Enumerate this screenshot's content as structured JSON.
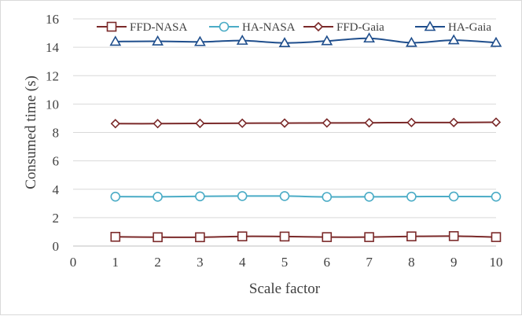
{
  "chart_data": {
    "type": "line",
    "title": "",
    "xlabel": "Scale factor",
    "ylabel": "Consumed time (s)",
    "xlim": [
      0,
      10
    ],
    "ylim": [
      0,
      16
    ],
    "x_ticks": [
      "0",
      "1",
      "2",
      "3",
      "4",
      "5",
      "6",
      "7",
      "8",
      "9",
      "10"
    ],
    "y_ticks": [
      "0",
      "2",
      "4",
      "6",
      "8",
      "10",
      "12",
      "14",
      "16"
    ],
    "grid": "horizontal",
    "legend_position": "top",
    "x": [
      1,
      2,
      3,
      4,
      5,
      6,
      7,
      8,
      9,
      10
    ],
    "series": [
      {
        "name": "FFD-NASA",
        "marker": "square",
        "color": "#7b2a2a",
        "values": [
          0.65,
          0.62,
          0.62,
          0.68,
          0.67,
          0.63,
          0.63,
          0.68,
          0.7,
          0.63
        ]
      },
      {
        "name": "HA-NASA",
        "marker": "circle",
        "color": "#4bacc6",
        "values": [
          3.48,
          3.47,
          3.5,
          3.52,
          3.52,
          3.46,
          3.47,
          3.48,
          3.49,
          3.48
        ]
      },
      {
        "name": "FFD-Gaia",
        "marker": "diamond",
        "color": "#7b2a2a",
        "values": [
          8.62,
          8.62,
          8.64,
          8.65,
          8.66,
          8.67,
          8.68,
          8.7,
          8.7,
          8.72
        ]
      },
      {
        "name": "HA-Gaia",
        "marker": "triangle",
        "color": "#1f4e8c",
        "values": [
          14.4,
          14.42,
          14.38,
          14.47,
          14.3,
          14.44,
          14.63,
          14.32,
          14.5,
          14.32
        ]
      }
    ]
  }
}
